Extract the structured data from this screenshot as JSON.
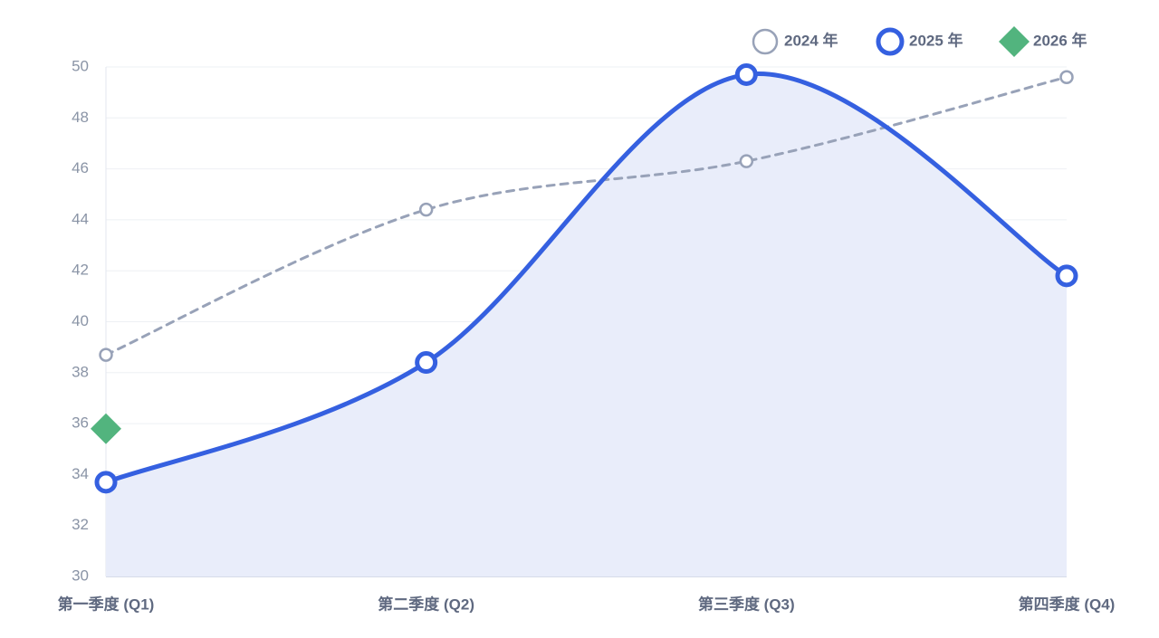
{
  "chart_data": {
    "type": "line",
    "categories": [
      "第一季度 (Q1)",
      "第二季度 (Q2)",
      "第三季度 (Q3)",
      "第四季度 (Q4)"
    ],
    "series": [
      {
        "name": "2024 年",
        "color": "#98a2b8",
        "values": [
          38.7,
          44.4,
          46.3,
          49.6
        ],
        "line_style": "dashed",
        "marker": "circle",
        "smooth": true
      },
      {
        "name": "2025 年",
        "color": "#3560e0",
        "values": [
          33.7,
          38.4,
          49.7,
          41.8
        ],
        "line_style": "solid",
        "marker": "circle",
        "smooth": true,
        "area": true,
        "area_color": "#e9edfa"
      },
      {
        "name": "2026 年",
        "color": "#52b47e",
        "values": [
          35.8,
          null,
          null,
          null
        ],
        "marker": "diamond"
      }
    ],
    "ylim": [
      30,
      50
    ],
    "yticks": [
      30,
      32,
      34,
      36,
      38,
      40,
      42,
      44,
      46,
      48,
      50
    ],
    "grid": true,
    "legend": "top-right"
  }
}
